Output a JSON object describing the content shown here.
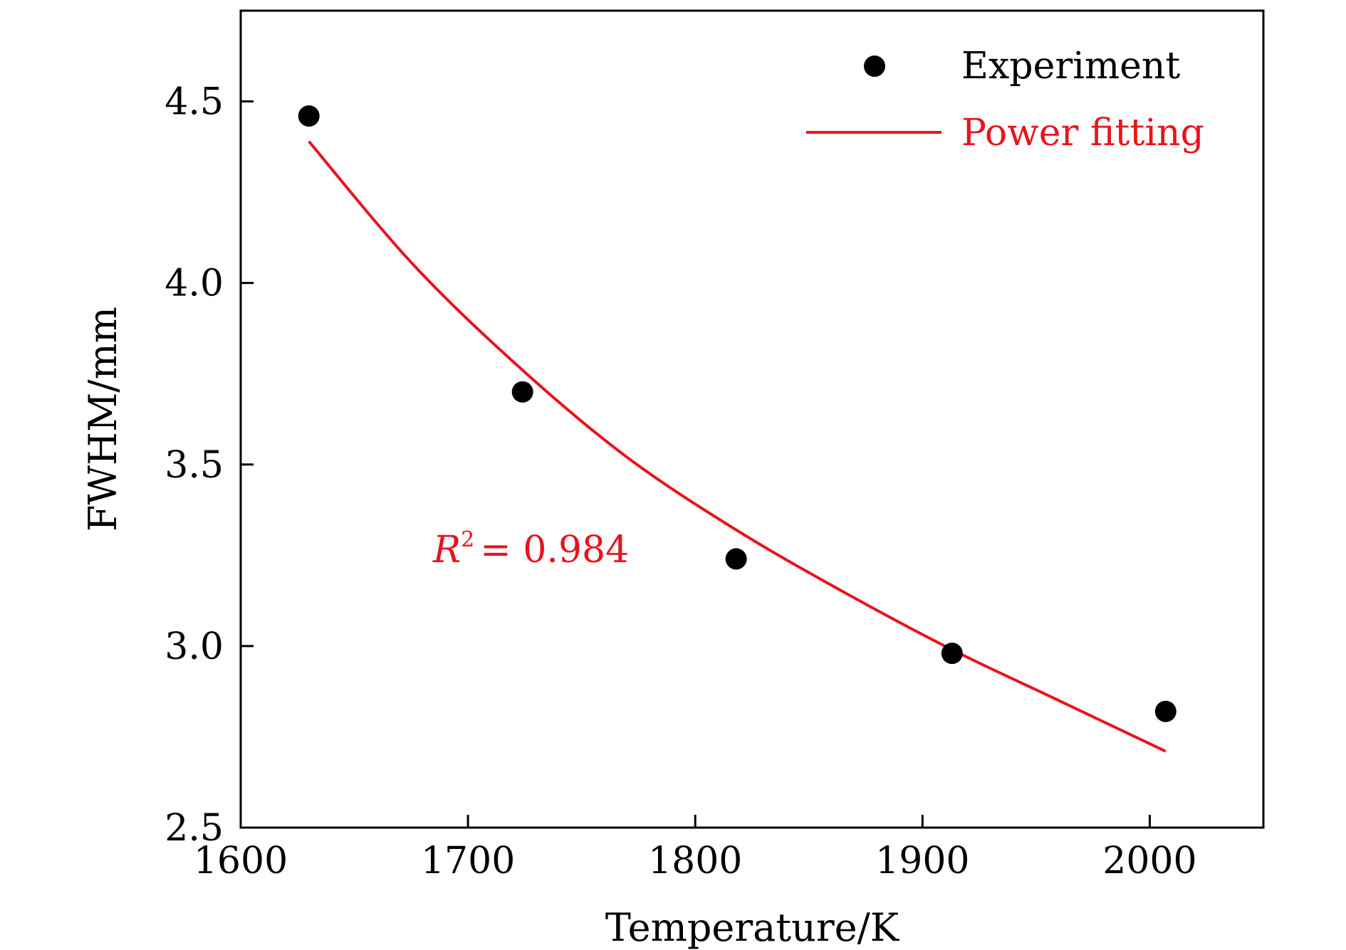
{
  "chart_data": {
    "type": "scatter",
    "title": "",
    "xlabel": "Temperature/K",
    "ylabel": "FWHM/mm",
    "xlim": [
      1600,
      2050
    ],
    "ylim": [
      2.5,
      4.75
    ],
    "xticks": [
      1600,
      1700,
      1800,
      1900,
      2000
    ],
    "xtick_labels": [
      "1600",
      "1700",
      "1800",
      "1900",
      "2000"
    ],
    "yticks": [
      2.5,
      3.0,
      3.5,
      4.0,
      4.5
    ],
    "ytick_labels": [
      "2.5",
      "3.0",
      "3.5",
      "4.0",
      "4.5"
    ],
    "grid": false,
    "legend_position": "top-right",
    "series": [
      {
        "name": "Experiment",
        "kind": "scatter",
        "color": "#000000",
        "x": [
          1630,
          1724,
          1818,
          1913,
          2007
        ],
        "y": [
          4.46,
          3.7,
          3.24,
          2.98,
          2.82
        ]
      },
      {
        "name": "Power fitting",
        "kind": "line",
        "color": "#e8141c",
        "x": [
          1630,
          1676,
          1724,
          1770,
          1818,
          1865,
          1913,
          1960,
          2007
        ],
        "y": [
          4.39,
          4.05,
          3.76,
          3.52,
          3.32,
          3.15,
          2.99,
          2.85,
          2.71
        ]
      }
    ],
    "annotations": [
      {
        "text_italic": "R",
        "superscript": "2",
        "text": "= 0.984",
        "color": "#e8141c"
      }
    ]
  }
}
